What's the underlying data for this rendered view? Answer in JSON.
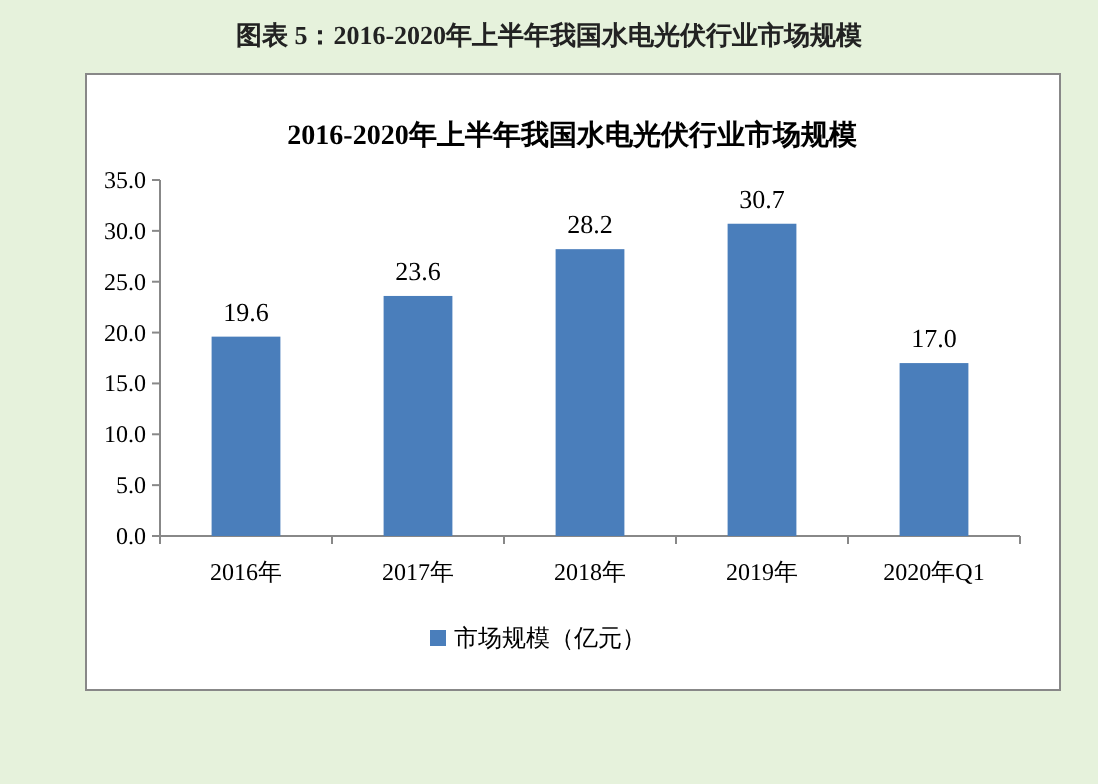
{
  "chart_data": {
    "type": "bar",
    "title": "图表 5：2016-2020年上半年我国水电光伏行业市场规模",
    "subtitle": "2016-2020年上半年我国水电光伏行业市场规模",
    "categories": [
      "2016年",
      "2017年",
      "2018年",
      "2019年",
      "2020年Q1"
    ],
    "series": [
      {
        "name": "市场规模（亿元）",
        "color": "#4a7ebb",
        "values": [
          19.6,
          23.6,
          28.2,
          30.7,
          17.0
        ]
      }
    ],
    "value_labels": [
      "19.6",
      "23.6",
      "28.2",
      "30.7",
      "17.0"
    ],
    "ylim": [
      0,
      35
    ],
    "yticks": [
      {
        "value": 0,
        "label": "0.0"
      },
      {
        "value": 5,
        "label": "5.0"
      },
      {
        "value": 10,
        "label": "10.0"
      },
      {
        "value": 15,
        "label": "15.0"
      },
      {
        "value": 20,
        "label": "20.0"
      },
      {
        "value": 25,
        "label": "25.0"
      },
      {
        "value": 30,
        "label": "30.0"
      },
      {
        "value": 35,
        "label": "35.0"
      }
    ],
    "grid": false,
    "legend": "bottom"
  }
}
